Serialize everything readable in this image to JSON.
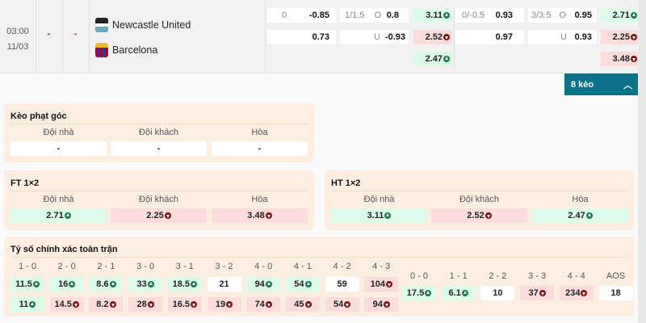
{
  "match": {
    "time": "03:00",
    "date": "11/03",
    "score_ht": "-",
    "score_ft": "-",
    "home": "Newcastle United",
    "away": "Barcelona",
    "ft_handicap": {
      "line": "0",
      "home": "-0.85",
      "away": "0.73"
    },
    "ft_ou": {
      "line": "1/1.5",
      "over_label": "O",
      "over": "0.8",
      "under_label": "U",
      "under": "-0.93"
    },
    "ht_1x2": [
      {
        "value": "3.11",
        "trend": "up"
      },
      {
        "value": "2.52",
        "trend": "down"
      },
      {
        "value": "2.47",
        "trend": "up"
      }
    ],
    "ht_handicap": {
      "line": "0/-0.5",
      "home": "0.93",
      "away": "0.97"
    },
    "ht_ou": {
      "line": "3/3.5",
      "over_label": "O",
      "over": "0.95",
      "under_label": "U",
      "under": "0.93"
    },
    "ft_1x2": [
      {
        "value": "2.71",
        "trend": "up"
      },
      {
        "value": "2.25",
        "trend": "down"
      },
      {
        "value": "3.48",
        "trend": "down"
      }
    ]
  },
  "more_button": "8 kèo",
  "colors": {
    "up": "#1c7a48",
    "down": "#7a1212",
    "accent": "#0b7189",
    "panel": "#fdeee2"
  },
  "corner": {
    "title": "Kèo phạt góc",
    "labels": [
      "Đội nhà",
      "Đội khách",
      "Hòa"
    ],
    "values": [
      {
        "value": "-",
        "trend": "none"
      },
      {
        "value": "-",
        "trend": "none"
      },
      {
        "value": "-",
        "trend": "none"
      }
    ]
  },
  "ft": {
    "title": "FT 1×2",
    "labels": [
      "Đội nhà",
      "Đội khách",
      "Hòa"
    ],
    "values": [
      {
        "value": "2.71",
        "trend": "up"
      },
      {
        "value": "2.25",
        "trend": "down"
      },
      {
        "value": "3.48",
        "trend": "down"
      }
    ]
  },
  "ht": {
    "title": "HT 1×2",
    "labels": [
      "Đội nhà",
      "Đội khách",
      "Hòa"
    ],
    "values": [
      {
        "value": "3.11",
        "trend": "up"
      },
      {
        "value": "2.52",
        "trend": "down"
      },
      {
        "value": "2.47",
        "trend": "up"
      }
    ]
  },
  "correct_score": {
    "title": "Tỷ số chính xác toàn trận",
    "pairs": [
      {
        "label": "1 - 0",
        "home": {
          "value": "11.5",
          "trend": "up"
        },
        "away": {
          "value": "11",
          "trend": "up"
        }
      },
      {
        "label": "2 - 0",
        "home": {
          "value": "16",
          "trend": "up"
        },
        "away": {
          "value": "14.5",
          "trend": "down"
        }
      },
      {
        "label": "2 - 1",
        "home": {
          "value": "8.6",
          "trend": "up"
        },
        "away": {
          "value": "8.2",
          "trend": "down"
        }
      },
      {
        "label": "3 - 0",
        "home": {
          "value": "33",
          "trend": "up"
        },
        "away": {
          "value": "28",
          "trend": "down"
        }
      },
      {
        "label": "3 - 1",
        "home": {
          "value": "18.5",
          "trend": "up"
        },
        "away": {
          "value": "16.5",
          "trend": "down"
        }
      },
      {
        "label": "3 - 2",
        "home": {
          "value": "21",
          "trend": "none"
        },
        "away": {
          "value": "19",
          "trend": "down"
        }
      },
      {
        "label": "4 - 0",
        "home": {
          "value": "94",
          "trend": "up"
        },
        "away": {
          "value": "74",
          "trend": "down"
        }
      },
      {
        "label": "4 - 1",
        "home": {
          "value": "54",
          "trend": "up"
        },
        "away": {
          "value": "45",
          "trend": "down"
        }
      },
      {
        "label": "4 - 2",
        "home": {
          "value": "59",
          "trend": "none"
        },
        "away": {
          "value": "54",
          "trend": "down"
        }
      },
      {
        "label": "4 - 3",
        "home": {
          "value": "104",
          "trend": "down"
        },
        "away": {
          "value": "94",
          "trend": "down"
        }
      }
    ],
    "draws": [
      {
        "label": "0 - 0",
        "value": "17.5",
        "trend": "up"
      },
      {
        "label": "1 - 1",
        "value": "6.1",
        "trend": "up"
      },
      {
        "label": "2 - 2",
        "value": "10",
        "trend": "none"
      },
      {
        "label": "3 - 3",
        "value": "37",
        "trend": "down"
      },
      {
        "label": "4 - 4",
        "value": "234",
        "trend": "down"
      },
      {
        "label": "AOS",
        "value": "18",
        "trend": "none"
      }
    ]
  }
}
